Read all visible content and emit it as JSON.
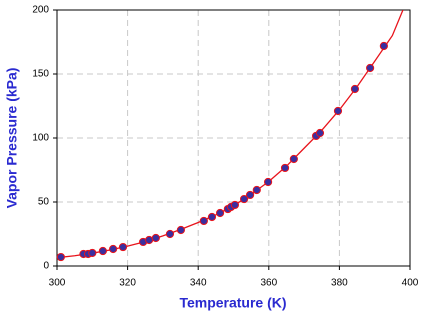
{
  "chart_data": {
    "type": "scatter",
    "xlabel": "Temperature (K)",
    "ylabel": "Vapor Pressure (kPa)",
    "xlim": [
      300,
      400
    ],
    "ylim": [
      0,
      200
    ],
    "xticks": [
      300,
      320,
      340,
      360,
      380,
      400
    ],
    "yticks": [
      0,
      50,
      100,
      150,
      200
    ],
    "grid": true,
    "series": [
      {
        "type": "line",
        "color": "#e8141c",
        "x": [
          300,
          305,
          310,
          315,
          320,
          325,
          330,
          335,
          340,
          345,
          350,
          355,
          360,
          365,
          370,
          375,
          380,
          385,
          390,
          395,
          398
        ],
        "values": [
          6.5,
          8,
          10,
          12.5,
          15.5,
          19,
          23.5,
          28.5,
          34,
          40,
          47,
          56,
          66,
          78,
          92,
          106,
          122,
          140,
          160,
          180,
          200
        ]
      },
      {
        "type": "scatter",
        "color": "#3a2fa0",
        "edge": "#e8141c",
        "x": [
          301.1,
          307.5,
          308.8,
          310,
          313,
          315.9,
          318.7,
          324.4,
          326.1,
          328,
          332,
          335.1,
          341.6,
          343.9,
          346.2,
          348.4,
          349.3,
          350.4,
          353,
          354.7,
          356.6,
          359.8,
          364.6,
          367.1,
          373.4,
          374.5,
          379.6,
          384.4,
          388.7,
          392.6
        ],
        "values": [
          7,
          9.4,
          9.4,
          10.2,
          11.7,
          13.3,
          14.8,
          18.8,
          20.3,
          21.9,
          25,
          28.1,
          35.2,
          38.3,
          41.4,
          44.5,
          46.1,
          47.7,
          52.3,
          55.5,
          59.4,
          65.6,
          76.6,
          83.6,
          101.6,
          103.9,
          121.1,
          138.3,
          154.7,
          171.9
        ]
      }
    ]
  }
}
